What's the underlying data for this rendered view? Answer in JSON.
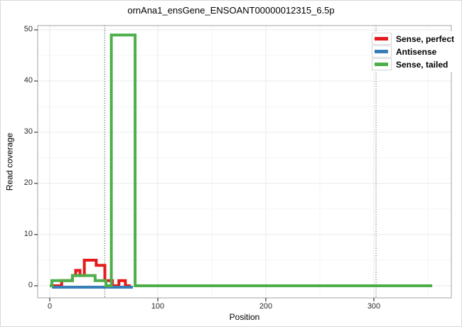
{
  "title": "ornAna1_ensGene_ENSOANT00000012315_6.5p",
  "chart_data": {
    "type": "line",
    "title": "ornAna1_ensGene_ENSOANT00000012315_6.5p",
    "xlabel": "Position",
    "ylabel": "Read coverage",
    "xlim": [
      0,
      354
    ],
    "ylim": [
      0,
      50
    ],
    "xticks": [
      0,
      100,
      200,
      300
    ],
    "yticks": [
      0,
      10,
      20,
      30,
      40,
      50
    ],
    "xminor": [
      50,
      150,
      250,
      350
    ],
    "yminor": [
      5,
      15,
      25,
      35,
      45
    ],
    "grid": "major and minor, light grey on white panel",
    "legend_position": "top-right inside panel",
    "marker_lines_x": [
      51,
      302
    ],
    "marker_line_style": "black dotted vertical",
    "series": [
      {
        "name": "Sense, perfect",
        "color": "#e41a1c",
        "steps": [
          [
            0,
            0
          ],
          [
            11,
            1
          ],
          [
            21,
            2
          ],
          [
            24,
            3
          ],
          [
            28,
            2
          ],
          [
            32,
            5
          ],
          [
            43,
            4
          ],
          [
            51,
            1
          ],
          [
            58,
            0
          ],
          [
            64,
            1
          ],
          [
            70,
            0
          ]
        ],
        "end": 75
      },
      {
        "name": "Antisense",
        "color": "#377eb8",
        "steps": [
          [
            2,
            0
          ]
        ],
        "end": 77
      },
      {
        "name": "Sense, tailed",
        "color": "#4daf4a",
        "steps": [
          [
            0,
            0
          ],
          [
            2,
            1
          ],
          [
            21,
            2
          ],
          [
            42,
            1
          ],
          [
            52,
            0
          ],
          [
            57,
            49
          ],
          [
            79,
            0
          ]
        ],
        "end": 354
      }
    ]
  }
}
